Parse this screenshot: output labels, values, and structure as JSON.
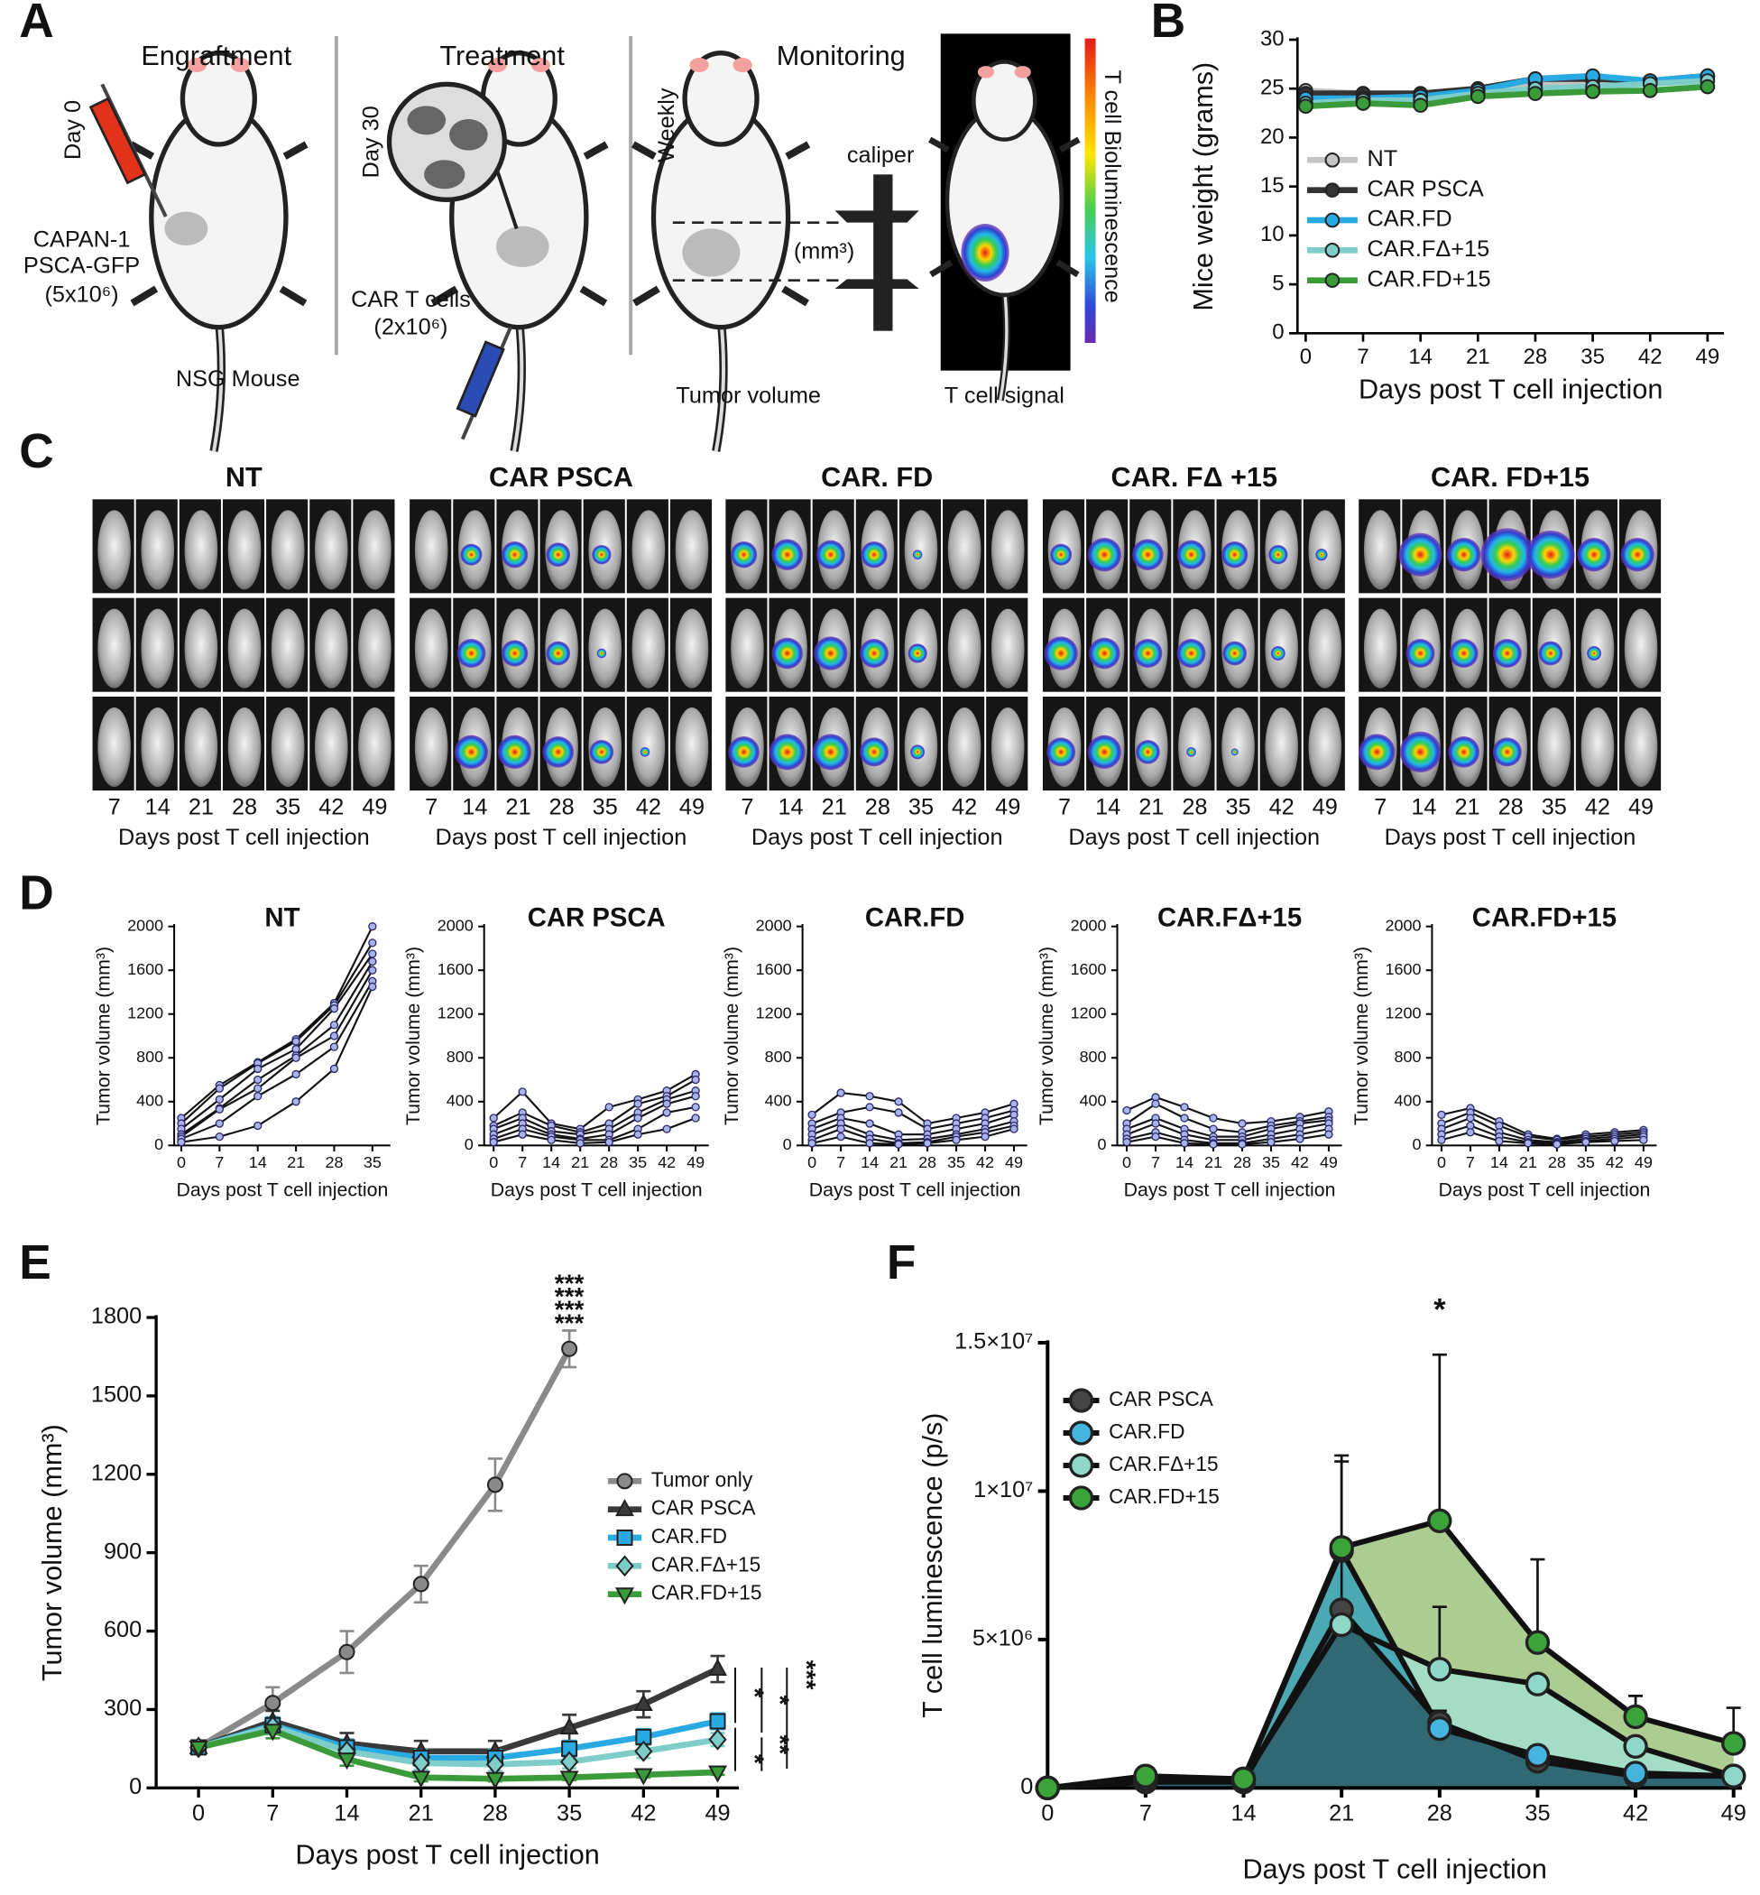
{
  "panel_labels": [
    "A",
    "B",
    "C",
    "D",
    "E",
    "F"
  ],
  "panel_a": {
    "steps": [
      "Engraftment",
      "Treatment",
      "Monitoring"
    ],
    "day0": "Day 0",
    "cell_line": [
      "CAPAN-1",
      "PSCA-GFP",
      "(5x10⁶)"
    ],
    "mouse": "NSG Mouse",
    "day30": "Day 30",
    "car": [
      "CAR T cells",
      "(2x10⁶)"
    ],
    "weekly": "Weekly",
    "caliper": "caliper",
    "unit": "(mm³)",
    "tumor_volume": "Tumor volume",
    "signal": "T cell signal",
    "colorbar": "T cell Bioluminescence"
  },
  "panel_c": {
    "groups": [
      "NT",
      "CAR PSCA",
      "CAR. FD",
      "CAR. FΔ +15",
      "CAR. FD+15"
    ],
    "days": [
      7,
      14,
      21,
      28,
      35,
      42,
      49
    ],
    "xlabel": "Days post T cell injection"
  },
  "chart_data": [
    {
      "type": "line",
      "xlabel": "Days post T cell injection",
      "ylabel": "Mice weight (grams)",
      "x": [
        0,
        7,
        14,
        21,
        28,
        35,
        42,
        49
      ],
      "xlim": [
        -1,
        51
      ],
      "ylim": [
        0,
        30
      ],
      "yticks": [
        0,
        5,
        10,
        15,
        20,
        25,
        30
      ],
      "series": [
        {
          "name": "NT",
          "color": "#c4c4c4",
          "values": [
            24.8,
            24.5,
            24.3,
            24.8,
            25.5,
            25.8,
            25.7,
            26.2
          ]
        },
        {
          "name": "CAR PSCA",
          "color": "#333333",
          "values": [
            24.5,
            24.5,
            24.5,
            25,
            26,
            26,
            25.8,
            26.3
          ]
        },
        {
          "name": "CAR.FD",
          "color": "#2aaae2",
          "values": [
            24,
            24,
            24.2,
            24.8,
            26,
            26.3,
            25.8,
            26.3
          ]
        },
        {
          "name": "CAR.FΔ+15",
          "color": "#7fcdc8",
          "values": [
            23.5,
            23.8,
            23.8,
            24.5,
            25,
            25.2,
            25.5,
            25.8
          ]
        },
        {
          "name": "CAR.FD+15",
          "color": "#3a9b3a",
          "values": [
            23.2,
            23.5,
            23.3,
            24.2,
            24.5,
            24.7,
            24.8,
            25.2
          ]
        }
      ]
    },
    {
      "type": "line",
      "title": "NT",
      "xlabel": "Days post T cell injection",
      "ylabel": "Tumor volume (mm³)",
      "x": [
        0,
        7,
        14,
        21,
        28,
        35
      ],
      "xlim": [
        -1.3,
        38.3
      ],
      "ylim": [
        0,
        2000
      ],
      "yticks": [
        0,
        400,
        800,
        1200,
        1600,
        2000
      ],
      "color": "#111111",
      "marker_color": "#a9b3ea",
      "series": [
        {
          "values": [
            250,
            550,
            760,
            970,
            1300,
            2000
          ]
        },
        {
          "values": [
            200,
            520,
            750,
            950,
            1280,
            1850
          ]
        },
        {
          "values": [
            150,
            420,
            700,
            880,
            1250,
            1750
          ]
        },
        {
          "values": [
            100,
            340,
            600,
            820,
            1100,
            1680
          ]
        },
        {
          "values": [
            80,
            330,
            520,
            800,
            1000,
            1600
          ]
        },
        {
          "values": [
            60,
            200,
            450,
            650,
            900,
            1500
          ]
        },
        {
          "values": [
            30,
            80,
            180,
            400,
            700,
            1450
          ]
        }
      ]
    },
    {
      "type": "line",
      "title": "CAR PSCA",
      "xlabel": "Days post T cell injection",
      "ylabel": "Tumor volume (mm³)",
      "x": [
        0,
        7,
        14,
        21,
        28,
        35,
        42,
        49
      ],
      "xlim": [
        -2.3,
        52.2
      ],
      "ylim": [
        0,
        2000
      ],
      "yticks": [
        0,
        400,
        800,
        1200,
        1600,
        2000
      ],
      "color": "#111111",
      "marker_color": "#a9b3ea",
      "series": [
        {
          "values": [
            250,
            490,
            200,
            150,
            350,
            420,
            500,
            650
          ]
        },
        {
          "values": [
            180,
            300,
            180,
            120,
            200,
            380,
            450,
            600
          ]
        },
        {
          "values": [
            150,
            250,
            130,
            100,
            150,
            300,
            420,
            500
          ]
        },
        {
          "values": [
            100,
            200,
            100,
            60,
            100,
            250,
            380,
            450
          ]
        },
        {
          "values": [
            60,
            150,
            80,
            50,
            50,
            150,
            300,
            350
          ]
        },
        {
          "values": [
            30,
            100,
            50,
            20,
            30,
            100,
            150,
            250
          ]
        }
      ]
    },
    {
      "type": "line",
      "title": "CAR.FD",
      "xlabel": "Days post T cell injection",
      "ylabel": "Tumor volume (mm³)",
      "x": [
        0,
        7,
        14,
        21,
        28,
        35,
        42,
        49
      ],
      "xlim": [
        -2.3,
        52.2
      ],
      "ylim": [
        0,
        2000
      ],
      "yticks": [
        0,
        400,
        800,
        1200,
        1600,
        2000
      ],
      "color": "#111111",
      "marker_color": "#a9b3ea",
      "series": [
        {
          "values": [
            280,
            480,
            450,
            400,
            200,
            250,
            300,
            380
          ]
        },
        {
          "values": [
            200,
            300,
            350,
            300,
            150,
            200,
            250,
            320
          ]
        },
        {
          "values": [
            150,
            250,
            200,
            100,
            100,
            150,
            200,
            280
          ]
        },
        {
          "values": [
            100,
            200,
            100,
            50,
            60,
            100,
            150,
            220
          ]
        },
        {
          "values": [
            50,
            150,
            60,
            20,
            30,
            80,
            120,
            180
          ]
        },
        {
          "values": [
            20,
            80,
            20,
            10,
            20,
            50,
            80,
            150
          ]
        }
      ]
    },
    {
      "type": "line",
      "title": "CAR.FΔ+15",
      "xlabel": "Days post T cell injection",
      "ylabel": "Tumor volume (mm³)",
      "x": [
        0,
        7,
        14,
        21,
        28,
        35,
        42,
        49
      ],
      "xlim": [
        -2.3,
        52.2
      ],
      "ylim": [
        0,
        2000
      ],
      "yticks": [
        0,
        400,
        800,
        1200,
        1600,
        2000
      ],
      "color": "#111111",
      "marker_color": "#a9b3ea",
      "series": [
        {
          "values": [
            320,
            440,
            350,
            250,
            200,
            220,
            260,
            310
          ]
        },
        {
          "values": [
            200,
            380,
            250,
            150,
            120,
            180,
            220,
            260
          ]
        },
        {
          "values": [
            150,
            250,
            150,
            80,
            80,
            150,
            200,
            230
          ]
        },
        {
          "values": [
            100,
            200,
            100,
            50,
            50,
            100,
            150,
            200
          ]
        },
        {
          "values": [
            60,
            120,
            50,
            20,
            20,
            60,
            100,
            150
          ]
        },
        {
          "values": [
            30,
            80,
            20,
            10,
            10,
            30,
            60,
            100
          ]
        }
      ]
    },
    {
      "type": "line",
      "title": "CAR.FD+15",
      "xlabel": "Days post T cell injection",
      "ylabel": "Tumor volume (mm³)",
      "x": [
        0,
        7,
        14,
        21,
        28,
        35,
        42,
        49
      ],
      "xlim": [
        -2.3,
        52.2
      ],
      "ylim": [
        0,
        2000
      ],
      "yticks": [
        0,
        400,
        800,
        1200,
        1600,
        2000
      ],
      "color": "#111111",
      "marker_color": "#a9b3ea",
      "series": [
        {
          "values": [
            280,
            340,
            220,
            100,
            60,
            100,
            120,
            140
          ]
        },
        {
          "values": [
            200,
            300,
            180,
            80,
            50,
            80,
            100,
            120
          ]
        },
        {
          "values": [
            150,
            250,
            120,
            50,
            30,
            60,
            80,
            100
          ]
        },
        {
          "values": [
            100,
            180,
            80,
            30,
            20,
            40,
            60,
            80
          ]
        },
        {
          "values": [
            50,
            120,
            40,
            20,
            10,
            30,
            40,
            50
          ]
        }
      ]
    },
    {
      "type": "line",
      "xlabel": "Days post T cell injection",
      "ylabel": "Tumor volume (mm³)",
      "x": [
        0,
        7,
        14,
        21,
        28,
        35,
        42,
        49
      ],
      "xlim": [
        -4,
        51
      ],
      "ylim": [
        0,
        1800
      ],
      "yticks": [
        0,
        300,
        600,
        900,
        1200,
        1500,
        1800
      ],
      "error_bars": "both",
      "series": [
        {
          "name": "Tumor only",
          "color": "#8a8a8a",
          "marker": "circle",
          "values": [
            155,
            325,
            520,
            780,
            1160,
            1680,
            null,
            null
          ],
          "errors": [
            20,
            60,
            80,
            70,
            100,
            70,
            null,
            null
          ]
        },
        {
          "name": "CAR PSCA",
          "color": "#3a3a3a",
          "marker": "triangle",
          "values": [
            155,
            255,
            170,
            140,
            140,
            230,
            320,
            455
          ],
          "errors": [
            20,
            40,
            40,
            40,
            40,
            50,
            50,
            50
          ]
        },
        {
          "name": "CAR.FD",
          "color": "#2aaae2",
          "marker": "square",
          "values": [
            155,
            240,
            155,
            115,
            115,
            150,
            195,
            255
          ],
          "errors": [
            20,
            30,
            30,
            30,
            30,
            30,
            30,
            30
          ]
        },
        {
          "name": "CAR.FΔ+15",
          "color": "#7fcdc8",
          "marker": "diamond",
          "values": [
            155,
            235,
            140,
            95,
            90,
            100,
            140,
            185
          ],
          "errors": [
            20,
            30,
            25,
            25,
            25,
            25,
            25,
            25
          ]
        },
        {
          "name": "CAR.FD+15",
          "color": "#3a9b3a",
          "marker": "triangle-down",
          "values": [
            155,
            220,
            110,
            40,
            35,
            40,
            50,
            60
          ],
          "errors": [
            20,
            30,
            25,
            15,
            10,
            10,
            10,
            10
          ]
        }
      ],
      "annotations": [
        {
          "text": "***",
          "color": "#333333"
        },
        {
          "text": "***",
          "color": "#2aaae2"
        },
        {
          "text": "***",
          "color": "#7fcdc8"
        },
        {
          "text": "***",
          "color": "#3a9b3a"
        },
        {
          "text": "*"
        },
        {
          "text": "*"
        },
        {
          "text": "***"
        },
        {
          "text": "*"
        },
        {
          "text": "**"
        }
      ]
    },
    {
      "type": "area",
      "xlabel": "Days post T cell injection",
      "ylabel": "T cell luminescence (p/s)",
      "x": [
        0,
        7,
        14,
        21,
        28,
        35,
        42,
        49
      ],
      "xlim": [
        0,
        49.6
      ],
      "ylim": [
        0,
        15000000
      ],
      "yticks": [
        0,
        {
          "value": 5000000,
          "label": "5×10⁶"
        },
        {
          "value": 10000000,
          "label": "1×10⁷"
        },
        {
          "value": 15000000,
          "label": "1.5×10⁷"
        }
      ],
      "line_color": "#111111",
      "error_bars": "up",
      "series": [
        {
          "name": "CAR PSCA",
          "color": "#444444",
          "fill": "#2f6570",
          "values": [
            0,
            200000,
            200000,
            6000000,
            2200000,
            900000,
            400000,
            400000
          ],
          "errors": [
            null,
            null,
            null,
            5000000,
            400000,
            null,
            null,
            null
          ]
        },
        {
          "name": "CAR.FD",
          "color": "#45b5e0",
          "fill": "#45a6b4",
          "values": [
            0,
            200000,
            300000,
            8000000,
            2000000,
            1100000,
            500000,
            400000
          ],
          "errors": [
            null,
            null,
            null,
            3200000,
            null,
            200000,
            null,
            null
          ]
        },
        {
          "name": "CAR.FΔ+15",
          "color": "#8fd8c8",
          "fill": "#a3dcc9",
          "values": [
            0,
            300000,
            300000,
            5500000,
            4000000,
            3500000,
            1400000,
            400000
          ],
          "errors": [
            null,
            null,
            null,
            null,
            2100000,
            null,
            null,
            null
          ]
        },
        {
          "name": "CAR.FD+15",
          "color": "#3aa33a",
          "fill": "#a9c98c",
          "values": [
            0,
            400000,
            300000,
            8100000,
            9000000,
            4900000,
            2400000,
            1500000
          ],
          "errors": [
            null,
            null,
            null,
            null,
            5600000,
            2800000,
            700000,
            1200000
          ]
        }
      ],
      "annotations": [
        {
          "text": "*"
        }
      ]
    }
  ]
}
